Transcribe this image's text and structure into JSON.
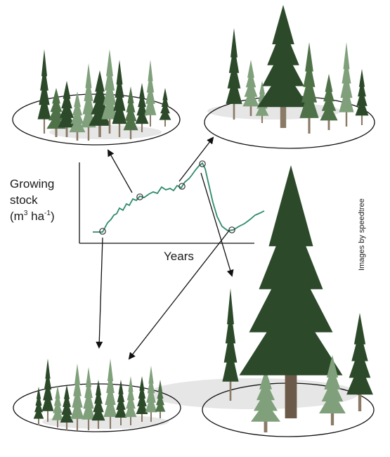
{
  "axes": {
    "y_label_line1": "Growing",
    "y_label_line2": "stock",
    "y_label_unit_m": "(m",
    "y_label_unit_exp1": "3",
    "y_label_unit_ha": " ha",
    "y_label_unit_exp2": "-1",
    "y_label_unit_close": ")",
    "x_label": "Years"
  },
  "credit": "Images by speedtree",
  "colors": {
    "growth_curve": "#2e8b6a",
    "ellipse": "#111111",
    "arrow": "#111111",
    "conifer_dark": "#2c4a2a",
    "conifer_light": "#7fa07a"
  },
  "stages": [
    {
      "name": "young-dense-stand"
    },
    {
      "name": "mixed-stand"
    },
    {
      "name": "mature-stand"
    },
    {
      "name": "old-growth-stand"
    }
  ]
}
